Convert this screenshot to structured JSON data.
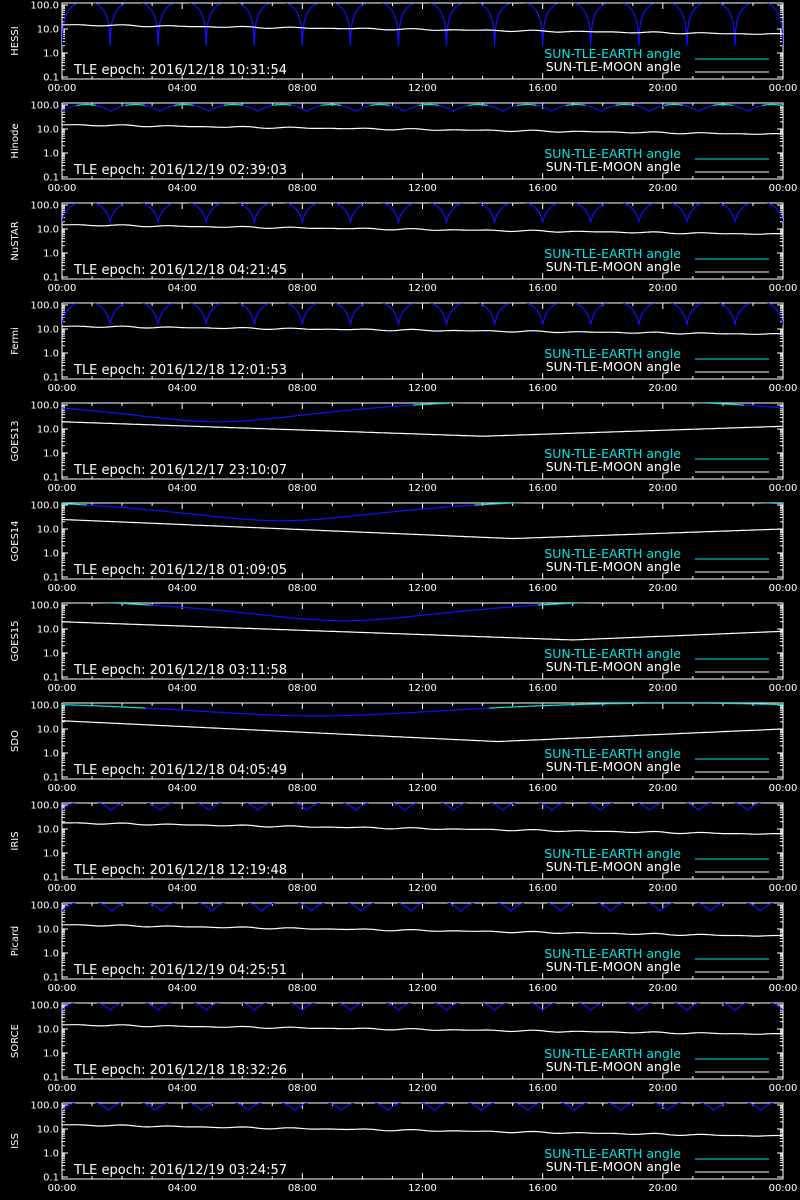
{
  "labels": {
    "epoch_prefix": "TLE epoch:",
    "earth_legend": "SUN-TLE-EARTH angle",
    "moon_legend": "SUN-TLE-MOON angle"
  },
  "colors": {
    "earth_day": "#00e5e5",
    "earth_night": "#1010ff",
    "moon": "#ffffff",
    "axes": "#ffffff",
    "background": "#000000"
  },
  "chart_data": [
    {
      "type": "line",
      "satellite": "HESSI",
      "epoch": "2016/12/18 10:31:54",
      "xlim": [
        "00:00",
        "24:00"
      ],
      "ylim": [
        0.1,
        100.0
      ],
      "yscale": "log",
      "x_ticks": [
        "00:00",
        "04:00",
        "08:00",
        "12:00",
        "16:00",
        "20:00",
        "00:00"
      ],
      "y_ticks": [
        "100.0",
        "10.0",
        "1.0",
        "0.1"
      ],
      "series": [
        {
          "name": "SUN-TLE-EARTH angle",
          "orbit_period_h": 1.6,
          "min_deg": 2,
          "max_deg": 140
        },
        {
          "name": "SUN-TLE-MOON angle",
          "start_deg": 15,
          "end_deg": 6
        }
      ]
    },
    {
      "type": "line",
      "satellite": "Hinode",
      "epoch": "2016/12/19 02:39:03",
      "xlim": [
        "00:00",
        "24:00"
      ],
      "ylim": [
        0.1,
        100.0
      ],
      "yscale": "log",
      "x_ticks": [
        "00:00",
        "04:00",
        "08:00",
        "12:00",
        "16:00",
        "20:00",
        "00:00"
      ],
      "y_ticks": [
        "100.0",
        "10.0",
        "1.0",
        "0.1"
      ],
      "series": [
        {
          "name": "SUN-TLE-EARTH angle",
          "orbit_period_h": 1.63,
          "min_deg": 55,
          "max_deg": 105
        },
        {
          "name": "SUN-TLE-MOON angle",
          "start_deg": 15,
          "end_deg": 6
        }
      ]
    },
    {
      "type": "line",
      "satellite": "NuSTAR",
      "epoch": "2016/12/18 04:21:45",
      "xlim": [
        "00:00",
        "24:00"
      ],
      "ylim": [
        0.1,
        100.0
      ],
      "yscale": "log",
      "x_ticks": [
        "00:00",
        "04:00",
        "08:00",
        "12:00",
        "16:00",
        "20:00",
        "00:00"
      ],
      "y_ticks": [
        "100.0",
        "10.0",
        "1.0",
        "0.1"
      ],
      "series": [
        {
          "name": "SUN-TLE-EARTH angle",
          "orbit_period_h": 1.6,
          "min_deg": 20,
          "max_deg": 140
        },
        {
          "name": "SUN-TLE-MOON angle",
          "start_deg": 15,
          "end_deg": 6
        }
      ]
    },
    {
      "type": "line",
      "satellite": "Fermi",
      "epoch": "2016/12/18 12:01:53",
      "xlim": [
        "00:00",
        "24:00"
      ],
      "ylim": [
        0.1,
        100.0
      ],
      "yscale": "log",
      "x_ticks": [
        "00:00",
        "04:00",
        "08:00",
        "12:00",
        "16:00",
        "20:00",
        "00:00"
      ],
      "y_ticks": [
        "100.0",
        "10.0",
        "1.0",
        "0.1"
      ],
      "series": [
        {
          "name": "SUN-TLE-EARTH angle",
          "orbit_period_h": 1.6,
          "min_deg": 15,
          "max_deg": 140
        },
        {
          "name": "SUN-TLE-MOON angle",
          "start_deg": 13,
          "end_deg": 6
        }
      ]
    },
    {
      "type": "line",
      "satellite": "GOES13",
      "epoch": "2016/12/17 23:10:07",
      "xlim": [
        "00:00",
        "24:00"
      ],
      "ylim": [
        0.1,
        100.0
      ],
      "yscale": "log",
      "x_ticks": [
        "00:00",
        "04:00",
        "08:00",
        "12:00",
        "16:00",
        "20:00",
        "00:00"
      ],
      "y_ticks": [
        "100.0",
        "10.0",
        "1.0",
        "0.1"
      ],
      "series": [
        {
          "name": "SUN-TLE-EARTH angle",
          "orbit_period_h": 24,
          "min_deg": 20,
          "max_deg": 160,
          "min_time_h": 5.2
        },
        {
          "name": "SUN-TLE-MOON angle",
          "start_deg": 20,
          "end_deg": 13,
          "min_deg": 5,
          "min_time_h": 14
        }
      ]
    },
    {
      "type": "line",
      "satellite": "GOES14",
      "epoch": "2016/12/18 01:09:05",
      "xlim": [
        "00:00",
        "24:00"
      ],
      "ylim": [
        0.1,
        100.0
      ],
      "yscale": "log",
      "x_ticks": [
        "00:00",
        "04:00",
        "08:00",
        "12:00",
        "16:00",
        "20:00",
        "00:00"
      ],
      "y_ticks": [
        "100.0",
        "10.0",
        "1.0",
        "0.1"
      ],
      "series": [
        {
          "name": "SUN-TLE-EARTH angle",
          "orbit_period_h": 24,
          "min_deg": 22,
          "max_deg": 160,
          "min_time_h": 7.3
        },
        {
          "name": "SUN-TLE-MOON angle",
          "start_deg": 25,
          "end_deg": 10,
          "min_deg": 4,
          "min_time_h": 15
        }
      ]
    },
    {
      "type": "line",
      "satellite": "GOES15",
      "epoch": "2016/12/18 03:11:58",
      "xlim": [
        "00:00",
        "24:00"
      ],
      "ylim": [
        0.1,
        100.0
      ],
      "yscale": "log",
      "x_ticks": [
        "00:00",
        "04:00",
        "08:00",
        "12:00",
        "16:00",
        "20:00",
        "00:00"
      ],
      "y_ticks": [
        "100.0",
        "10.0",
        "1.0",
        "0.1"
      ],
      "series": [
        {
          "name": "SUN-TLE-EARTH angle",
          "orbit_period_h": 24,
          "min_deg": 22,
          "max_deg": 160,
          "min_time_h": 9.4
        },
        {
          "name": "SUN-TLE-MOON angle",
          "start_deg": 20,
          "end_deg": 8,
          "min_deg": 3.5,
          "min_time_h": 17
        }
      ]
    },
    {
      "type": "line",
      "satellite": "SDO",
      "epoch": "2016/12/18 04:05:49",
      "xlim": [
        "00:00",
        "24:00"
      ],
      "ylim": [
        0.1,
        100.0
      ],
      "yscale": "log",
      "x_ticks": [
        "00:00",
        "04:00",
        "08:00",
        "12:00",
        "16:00",
        "20:00",
        "00:00"
      ],
      "y_ticks": [
        "100.0",
        "10.0",
        "1.0",
        "0.1"
      ],
      "series": [
        {
          "name": "SUN-TLE-EARTH angle",
          "orbit_period_h": 24,
          "min_deg": 35,
          "max_deg": 120,
          "min_time_h": 8.5
        },
        {
          "name": "SUN-TLE-MOON angle",
          "start_deg": 22,
          "end_deg": 10,
          "min_deg": 3,
          "min_time_h": 14.5
        }
      ]
    },
    {
      "type": "line",
      "satellite": "IRIS",
      "epoch": "2016/12/18 12:19:48",
      "xlim": [
        "00:00",
        "24:00"
      ],
      "ylim": [
        0.1,
        100.0
      ],
      "yscale": "log",
      "x_ticks": [
        "00:00",
        "04:00",
        "08:00",
        "12:00",
        "16:00",
        "20:00",
        "00:00"
      ],
      "y_ticks": [
        "100.0",
        "10.0",
        "1.0",
        "0.1"
      ],
      "series": [
        {
          "name": "SUN-TLE-EARTH angle",
          "orbit_period_h": 1.63,
          "min_deg": 60,
          "max_deg": 150
        },
        {
          "name": "SUN-TLE-MOON angle",
          "start_deg": 18,
          "end_deg": 6
        }
      ]
    },
    {
      "type": "line",
      "satellite": "Picard",
      "epoch": "2016/12/19 04:25:51",
      "xlim": [
        "00:00",
        "24:00"
      ],
      "ylim": [
        0.1,
        100.0
      ],
      "yscale": "log",
      "x_ticks": [
        "00:00",
        "04:00",
        "08:00",
        "12:00",
        "16:00",
        "20:00",
        "00:00"
      ],
      "y_ticks": [
        "100.0",
        "10.0",
        "1.0",
        "0.1"
      ],
      "series": [
        {
          "name": "SUN-TLE-EARTH angle",
          "orbit_period_h": 1.66,
          "min_deg": 55,
          "max_deg": 150
        },
        {
          "name": "SUN-TLE-MOON angle",
          "start_deg": 15,
          "end_deg": 5
        }
      ]
    },
    {
      "type": "line",
      "satellite": "SORCE",
      "epoch": "2016/12/18 18:32:26",
      "xlim": [
        "00:00",
        "24:00"
      ],
      "ylim": [
        0.1,
        100.0
      ],
      "yscale": "log",
      "x_ticks": [
        "00:00",
        "04:00",
        "08:00",
        "12:00",
        "16:00",
        "20:00",
        "00:00"
      ],
      "y_ticks": [
        "100.0",
        "10.0",
        "1.0",
        "0.1"
      ],
      "series": [
        {
          "name": "SUN-TLE-EARTH angle",
          "orbit_period_h": 1.6,
          "min_deg": 60,
          "max_deg": 150
        },
        {
          "name": "SUN-TLE-MOON angle",
          "start_deg": 15,
          "end_deg": 6
        }
      ]
    },
    {
      "type": "line",
      "satellite": "ISS",
      "epoch": "2016/12/19 03:24:57",
      "xlim": [
        "00:00",
        "24:00"
      ],
      "ylim": [
        0.1,
        100.0
      ],
      "yscale": "log",
      "x_ticks": [
        "00:00",
        "04:00",
        "08:00",
        "12:00",
        "16:00",
        "20:00",
        "00:00"
      ],
      "y_ticks": [
        "100.0",
        "10.0",
        "1.0",
        "0.1"
      ],
      "series": [
        {
          "name": "SUN-TLE-EARTH angle",
          "orbit_period_h": 1.55,
          "min_deg": 60,
          "max_deg": 145
        },
        {
          "name": "SUN-TLE-MOON angle",
          "start_deg": 15,
          "end_deg": 5
        }
      ]
    }
  ]
}
